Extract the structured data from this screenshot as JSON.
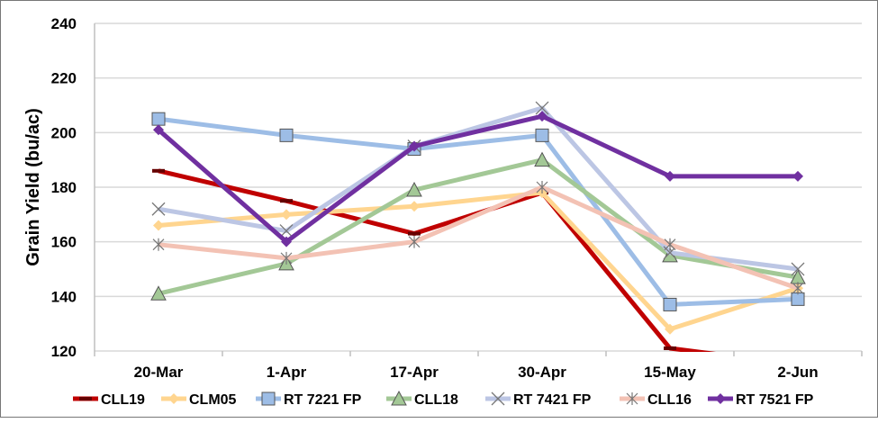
{
  "chart_data": {
    "type": "line",
    "title": "",
    "xlabel": "",
    "ylabel": "Grain Yield (bu/ac)",
    "categories": [
      "20-Mar",
      "1-Apr",
      "17-Apr",
      "30-Apr",
      "15-May",
      "2-Jun"
    ],
    "ylim": [
      120,
      240
    ],
    "yticks": [
      120,
      140,
      160,
      180,
      200,
      220,
      240
    ],
    "grid": true,
    "legend_position": "bottom",
    "series": [
      {
        "name": "CLL19",
        "color": "#c00000",
        "marker": "dash",
        "values": [
          186,
          175,
          163,
          178,
          121,
          115
        ]
      },
      {
        "name": "CLM05",
        "color": "#ffd58f",
        "marker": "diamond",
        "values": [
          166,
          170,
          173,
          178,
          128,
          143
        ]
      },
      {
        "name": "RT 7221 FP",
        "color": "#9dbde6",
        "marker": "square",
        "values": [
          205,
          199,
          194,
          199,
          137,
          139
        ]
      },
      {
        "name": "CLL18",
        "color": "#a3c896",
        "marker": "triangle",
        "values": [
          141,
          152,
          179,
          190,
          155,
          147
        ]
      },
      {
        "name": "RT 7421 FP",
        "color": "#bcc6e4",
        "marker": "x",
        "values": [
          172,
          164,
          195,
          209,
          156,
          150
        ]
      },
      {
        "name": "CLL16",
        "color": "#f3c2b4",
        "marker": "asterisk",
        "values": [
          159,
          154,
          160,
          180,
          159,
          143
        ]
      },
      {
        "name": "RT 7521 FP",
        "color": "#7030a0",
        "marker": "diamond",
        "values": [
          201,
          160,
          195,
          206,
          184,
          184
        ]
      }
    ]
  }
}
